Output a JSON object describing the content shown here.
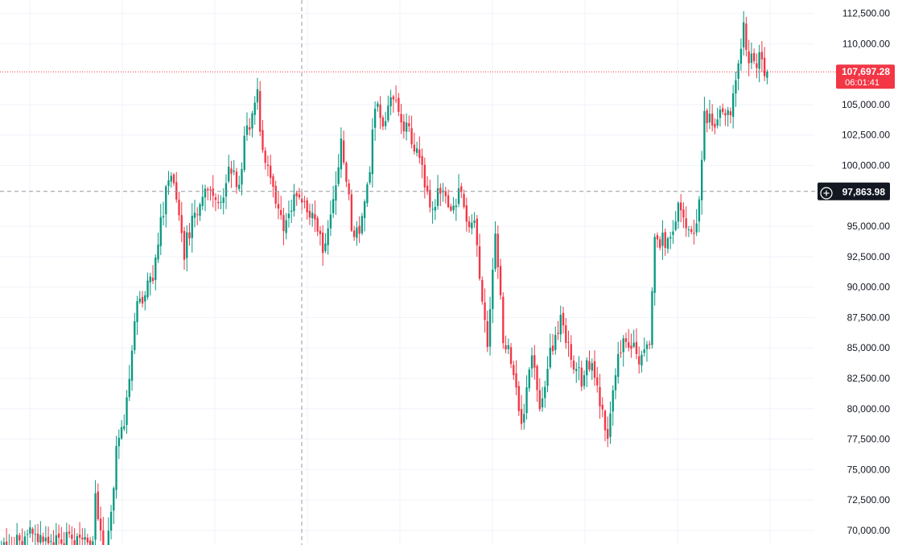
{
  "chart_data": {
    "type": "candlestick",
    "title": "",
    "xlabel": "",
    "ylabel": "",
    "ylim": [
      68800,
      113600
    ],
    "grid": true,
    "y_ticks": [
      {
        "value": 112500,
        "label": "112,500.00"
      },
      {
        "value": 110000,
        "label": "110,000.00"
      },
      {
        "value": 105000,
        "label": "105,000.00"
      },
      {
        "value": 102500,
        "label": "102,500.00"
      },
      {
        "value": 100000,
        "label": "100,000.00"
      },
      {
        "value": 95000,
        "label": "95,000.00"
      },
      {
        "value": 92500,
        "label": "92,500.00"
      },
      {
        "value": 90000,
        "label": "90,000.00"
      },
      {
        "value": 87500,
        "label": "87,500.00"
      },
      {
        "value": 85000,
        "label": "85,000.00"
      },
      {
        "value": 82500,
        "label": "82,500.00"
      },
      {
        "value": 80000,
        "label": "80,000.00"
      },
      {
        "value": 77500,
        "label": "77,500.00"
      },
      {
        "value": 75000,
        "label": "75,000.00"
      },
      {
        "value": 72500,
        "label": "72,500.00"
      },
      {
        "value": 70000,
        "label": "70,000.00"
      }
    ],
    "anchors": [
      [
        0,
        68500
      ],
      [
        10,
        69600
      ],
      [
        18,
        69300
      ],
      [
        35,
        69000
      ],
      [
        36,
        73500
      ],
      [
        39,
        68000
      ],
      [
        41,
        69500
      ],
      [
        44,
        76500
      ],
      [
        47,
        78800
      ],
      [
        50,
        85000
      ],
      [
        52,
        88500
      ],
      [
        58,
        91000
      ],
      [
        60,
        94000
      ],
      [
        64,
        99000
      ],
      [
        66,
        97800
      ],
      [
        70,
        93000
      ],
      [
        74,
        96000
      ],
      [
        80,
        98500
      ],
      [
        84,
        97000
      ],
      [
        87,
        100000
      ],
      [
        91,
        98500
      ],
      [
        93,
        102000
      ],
      [
        98,
        106000
      ],
      [
        100,
        101000
      ],
      [
        104,
        98000
      ],
      [
        108,
        95000
      ],
      [
        113,
        98000
      ],
      [
        118,
        96000
      ],
      [
        124,
        93000
      ],
      [
        127,
        96500
      ],
      [
        130,
        102500
      ],
      [
        134,
        95000
      ],
      [
        137,
        94000
      ],
      [
        141,
        100000
      ],
      [
        143,
        105000
      ],
      [
        147,
        103500
      ],
      [
        150,
        106000
      ],
      [
        154,
        103500
      ],
      [
        159,
        101000
      ],
      [
        164,
        97000
      ],
      [
        168,
        97500
      ],
      [
        172,
        96500
      ],
      [
        176,
        98000
      ],
      [
        178,
        95500
      ],
      [
        181,
        96000
      ],
      [
        183,
        90000
      ],
      [
        186,
        85000
      ],
      [
        189,
        94000
      ],
      [
        192,
        86000
      ],
      [
        196,
        83000
      ],
      [
        199,
        78500
      ],
      [
        203,
        84000
      ],
      [
        206,
        80000
      ],
      [
        210,
        84500
      ],
      [
        214,
        87000
      ],
      [
        218,
        84000
      ],
      [
        222,
        82500
      ],
      [
        226,
        84000
      ],
      [
        230,
        79500
      ],
      [
        232,
        77000
      ],
      [
        236,
        85000
      ],
      [
        240,
        85500
      ],
      [
        244,
        84000
      ],
      [
        248,
        85000
      ],
      [
        250,
        93500
      ],
      [
        255,
        94000
      ],
      [
        260,
        97000
      ],
      [
        262,
        95000
      ],
      [
        264,
        94000
      ],
      [
        267,
        96500
      ],
      [
        269,
        104000
      ],
      [
        272,
        103500
      ],
      [
        276,
        104000
      ],
      [
        279,
        104500
      ],
      [
        282,
        108500
      ],
      [
        284,
        111500
      ],
      [
        286,
        108500
      ],
      [
        290,
        108800
      ],
      [
        293,
        107697.28
      ]
    ],
    "candle_count": 294,
    "price_scale": "linear",
    "last_price": {
      "label": "107,697.28",
      "value": 107697.28,
      "countdown": "06:01:41",
      "color": "#f23645"
    },
    "crosshair": {
      "label": "97,863.98",
      "value": 97863.98,
      "x_fraction": 0.336
    },
    "colors": {
      "up": "#089981",
      "down": "#f23645",
      "grid": "#f0f3fa",
      "axis_text": "#131722",
      "crosshair": "#9598a1",
      "crosshair_label_bg": "#131722"
    },
    "crosshair_icon": "plus-circle-icon"
  }
}
